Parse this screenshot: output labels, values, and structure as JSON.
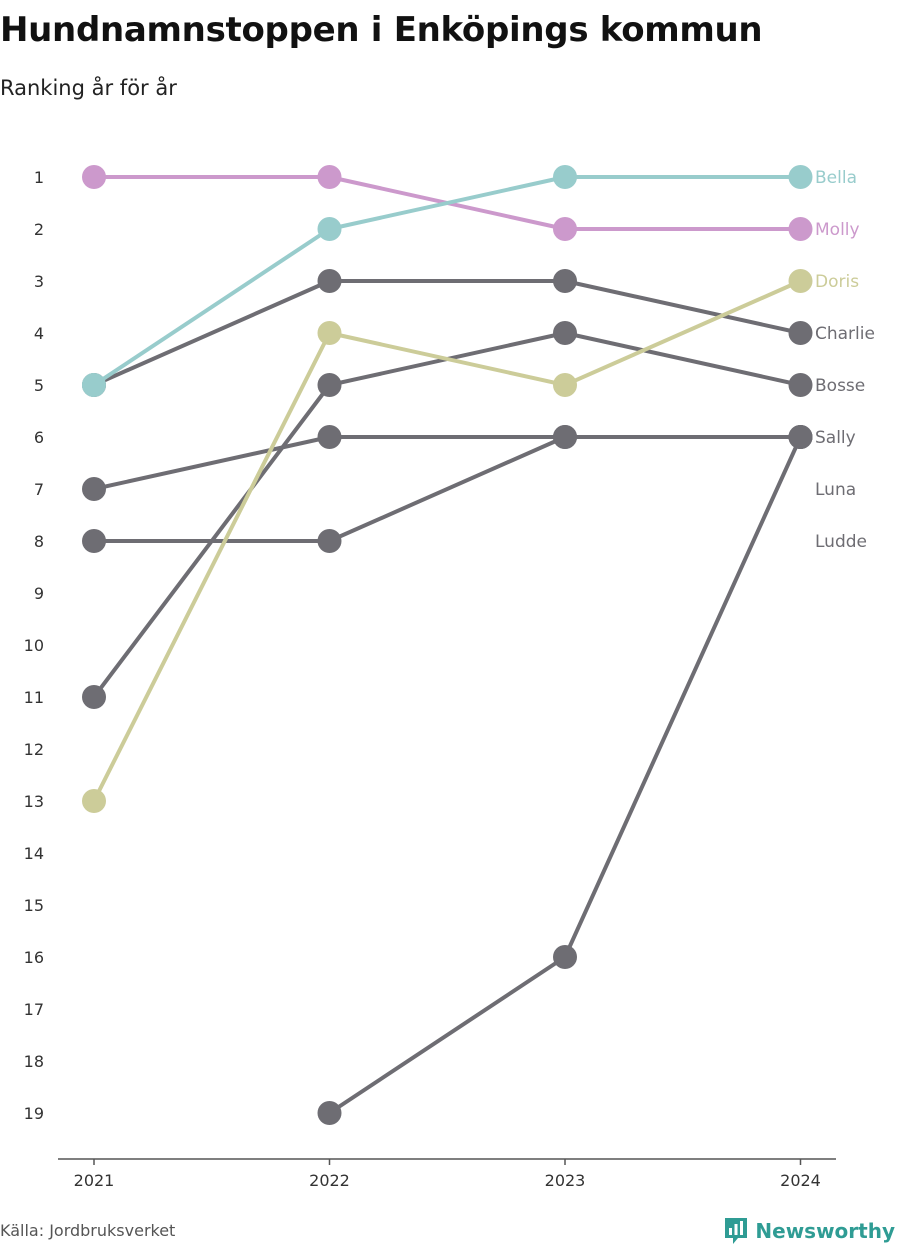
{
  "header": {
    "title": "Hundnamnstoppen i Enköpings kommun",
    "subtitle": "Ranking år för år"
  },
  "footer": {
    "source": "Källa: Jordbruksverket",
    "brand": "Newsworthy",
    "brand_icon": "newsworthy-logo-icon"
  },
  "colors": {
    "gray": "#6e6d73",
    "axis": "#555555",
    "Bella": "#98cccc",
    "Molly": "#cc99cc",
    "Doris": "#cccc99",
    "brand": "#2f9c94"
  },
  "chart_data": {
    "type": "line",
    "subtype": "bump-chart",
    "x": [
      "2021",
      "2022",
      "2023",
      "2024"
    ],
    "ylim": [
      1,
      19
    ],
    "y_reversed": true,
    "yticks": [
      1,
      2,
      3,
      4,
      5,
      6,
      7,
      8,
      9,
      10,
      11,
      12,
      13,
      14,
      15,
      16,
      17,
      18,
      19
    ],
    "series": [
      {
        "name": "Charlie",
        "color": "#6e6d73",
        "values": [
          5,
          3,
          3,
          4
        ]
      },
      {
        "name": "Bosse",
        "color": "#6e6d73",
        "values": [
          11,
          5,
          4,
          5
        ]
      },
      {
        "name": "Sally",
        "color": "#6e6d73",
        "values": [
          7,
          6,
          6,
          6
        ]
      },
      {
        "name": "Luna",
        "color": "#6e6d73",
        "values": [
          8,
          8,
          6,
          6
        ]
      },
      {
        "name": "Ludde",
        "color": "#6e6d73",
        "values": [
          null,
          19,
          16,
          6
        ]
      },
      {
        "name": "Doris",
        "color": "#cccc99",
        "values": [
          13,
          4,
          5,
          3
        ]
      },
      {
        "name": "Molly",
        "color": "#cc99cc",
        "values": [
          1,
          1,
          2,
          2
        ]
      },
      {
        "name": "Bella",
        "color": "#98cccc",
        "values": [
          5,
          2,
          1,
          1
        ]
      }
    ],
    "end_labels": [
      {
        "name": "Bella",
        "rank": 1,
        "color": "#98cccc"
      },
      {
        "name": "Molly",
        "rank": 2,
        "color": "#cc99cc"
      },
      {
        "name": "Doris",
        "rank": 3,
        "color": "#cccc99"
      },
      {
        "name": "Charlie",
        "rank": 4,
        "color": "#6e6d73"
      },
      {
        "name": "Bosse",
        "rank": 5,
        "color": "#6e6d73"
      },
      {
        "name": "Sally",
        "rank": 6,
        "color": "#6e6d73"
      },
      {
        "name": "Luna",
        "rank": 7,
        "color": "#6e6d73"
      },
      {
        "name": "Ludde",
        "rank": 8,
        "color": "#6e6d73"
      }
    ]
  }
}
